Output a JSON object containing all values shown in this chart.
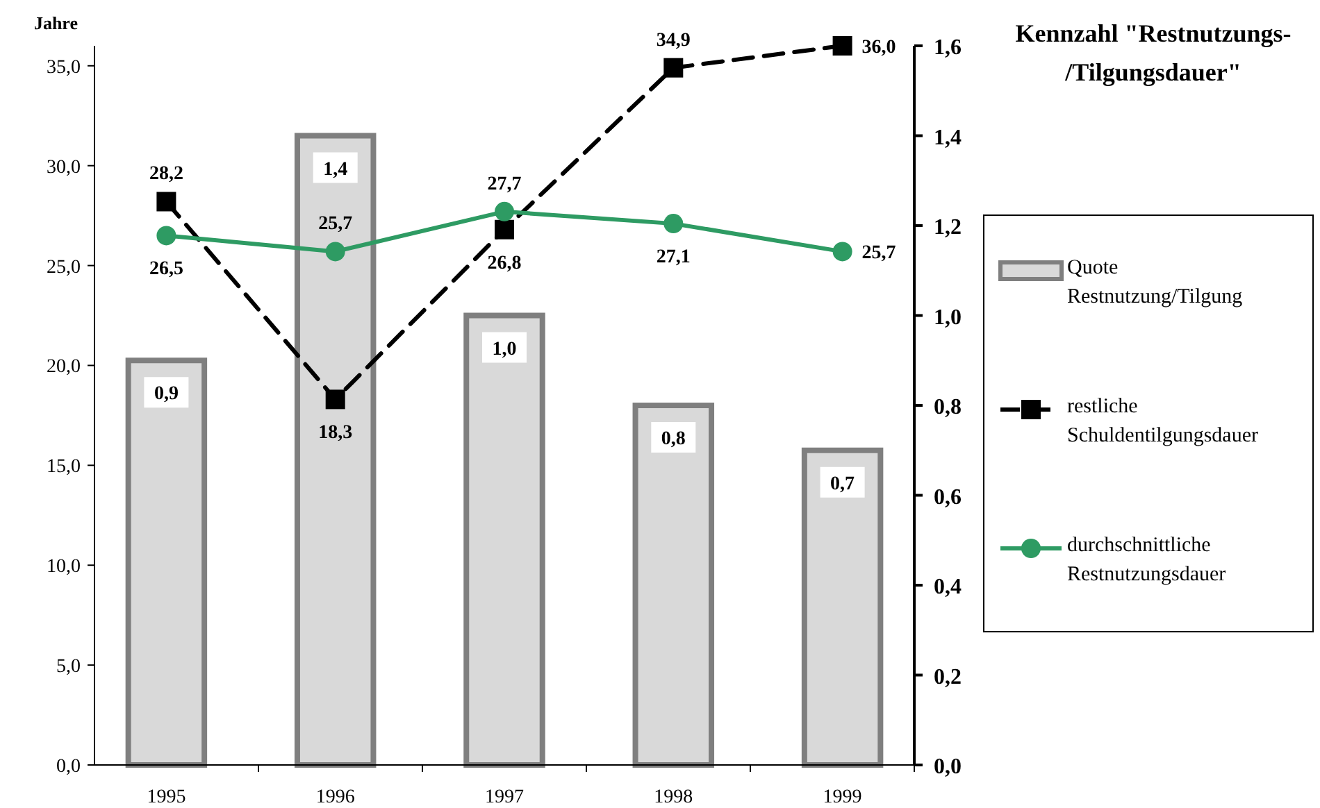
{
  "chart_data": {
    "type": "bar",
    "title": "Kennzahl \"Restnutzungs-/Tilgungsdauer\"",
    "ylabel": "Jahre",
    "categories": [
      "1995",
      "1996",
      "1997",
      "1998",
      "1999"
    ],
    "series": [
      {
        "name": "Quote Restnutzung/Tilgung",
        "axis": "y2",
        "color": "#d9d9d9",
        "values": [
          0.9,
          1.4,
          1.0,
          0.8,
          0.7
        ],
        "value_labels": [
          "0,9",
          "1,4",
          "1,0",
          "0,8",
          "0,7"
        ]
      },
      {
        "name": "restliche Schuldentilgungsdauer",
        "type": "line",
        "color": "#000000",
        "marker": "square",
        "line_style": "dashed",
        "values": [
          28.2,
          18.3,
          26.8,
          34.9,
          36.0
        ],
        "value_labels": [
          "28,2",
          "18,3",
          "26,8",
          "34,9",
          "36,0"
        ]
      },
      {
        "name": "durchschnittliche Restnutzungsdauer",
        "type": "line",
        "color": "#2e9b63",
        "marker": "circle",
        "line_style": "solid",
        "values": [
          26.5,
          25.7,
          27.7,
          27.1,
          25.7
        ],
        "value_labels": [
          "26,5",
          "25,7",
          "27,7",
          "27,1",
          "25,7"
        ]
      }
    ],
    "ylim": [
      0,
      36
    ],
    "yticks": [
      {
        "value": 0,
        "label": "0,0"
      },
      {
        "value": 5,
        "label": "5,0"
      },
      {
        "value": 10,
        "label": "10,0"
      },
      {
        "value": 15,
        "label": "15,0"
      },
      {
        "value": 20,
        "label": "20,0"
      },
      {
        "value": 25,
        "label": "25,0"
      },
      {
        "value": 30,
        "label": "30,0"
      },
      {
        "value": 35,
        "label": "35,0"
      }
    ],
    "y2lim": [
      0,
      1.6
    ],
    "y2ticks": [
      {
        "value": 0,
        "label": "0,0"
      },
      {
        "value": 0.2,
        "label": "0,2"
      },
      {
        "value": 0.4,
        "label": "0,4"
      },
      {
        "value": 0.6,
        "label": "0,6"
      },
      {
        "value": 0.8,
        "label": "0,8"
      },
      {
        "value": 1.0,
        "label": "1,0"
      },
      {
        "value": 1.2,
        "label": "1,2"
      },
      {
        "value": 1.4,
        "label": "1,4"
      },
      {
        "value": 1.6,
        "label": "1,6"
      }
    ],
    "grid": false,
    "legend": "right"
  }
}
